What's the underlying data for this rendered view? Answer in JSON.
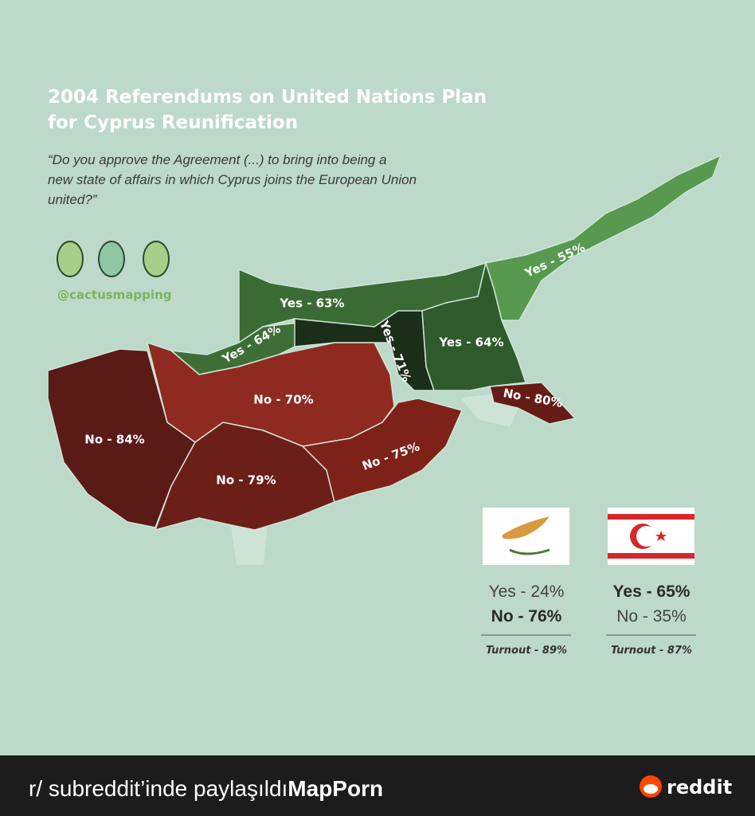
{
  "header": {
    "title_lines": [
      "2004 Referendums on United Nations Plan",
      "for Cyprus Reunification"
    ],
    "question_lines": [
      "“Do you approve the  Agreement (...) to bring into being a",
      "new state of affairs in which Cyprus joins the European Union",
      "united?”"
    ]
  },
  "credit": "@cactusmapping",
  "regions": [
    {
      "label": "Yes - 55%"
    },
    {
      "label": "Yes - 63%"
    },
    {
      "label": "Yes - 64%"
    },
    {
      "label": "Yes - 71%"
    },
    {
      "label": "Yes - 64%"
    },
    {
      "label": "No - 70%"
    },
    {
      "label": "No - 84%"
    },
    {
      "label": "No - 79%"
    },
    {
      "label": "No - 75%"
    },
    {
      "label": "No - 80%"
    }
  ],
  "results": [
    {
      "yes": "Yes - 24%",
      "no": "No - 76%",
      "turnout": "Turnout - 89%"
    },
    {
      "yes": "Yes - 65%",
      "no": "No - 35%",
      "turnout": "Turnout - 87%"
    }
  ],
  "footer": {
    "prefix": "r/ subreddit’inde paylaşıldı",
    "subreddit": "MapPorn",
    "brand": "reddit"
  }
}
